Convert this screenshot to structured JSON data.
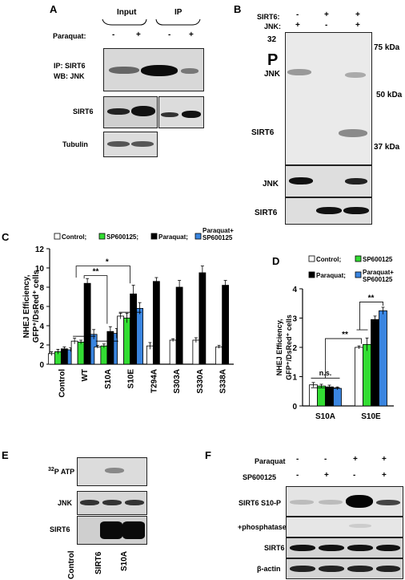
{
  "panels": {
    "A": {
      "letter": "A",
      "group_input": "Input",
      "group_ip": "IP",
      "treatment_label": "Paraquat:",
      "lane_signs": [
        "-",
        "+",
        "-",
        "+"
      ],
      "rows": [
        "IP: SIRT6\nWB: JNK",
        "SIRT6",
        "Tubulin"
      ]
    },
    "B": {
      "letter": "B",
      "sirt6_label": "SIRT6:",
      "jnk_label": "JNK:",
      "sirt6_signs": [
        "-",
        "+",
        "+"
      ],
      "jnk_signs": [
        "+",
        "-",
        "+"
      ],
      "p32_num": "32",
      "p32_letter": "P",
      "blot_labels": [
        "JNK",
        "SIRT6"
      ],
      "mw_markers": [
        "75 kDa",
        "50 kDa",
        "37 kDa"
      ],
      "lower_rows": [
        "JNK",
        "SIRT6"
      ]
    },
    "E": {
      "letter": "E",
      "rows": [
        "ATP",
        "JNK",
        "SIRT6"
      ],
      "atp_sup": "32",
      "atp_p": "P",
      "lanes": [
        "Control",
        "SIRT6",
        "S10A"
      ]
    },
    "F": {
      "letter": "F",
      "paraquat_label": "Paraquat",
      "sp_label": "SP600125",
      "paraquat_signs": [
        "-",
        "-",
        "+",
        "+"
      ],
      "sp_signs": [
        "-",
        "+",
        "-",
        "+"
      ],
      "rows": [
        "SIRT6 S10-P",
        "+phosphatase",
        "SIRT6",
        "β-actin"
      ]
    }
  },
  "chart_data": [
    {
      "panel": "C",
      "type": "bar",
      "ylabel_line1": "NHEJ Efficiency,",
      "ylabel_line2": "GFP⁺/DsRed⁺ cells",
      "ylim": [
        0,
        12
      ],
      "yticks": [
        "0",
        "2",
        "4",
        "6",
        "8",
        "10",
        "12"
      ],
      "categories": [
        "Control",
        "WT",
        "S10A",
        "S10E",
        "T294A",
        "S303A",
        "S330A",
        "S338A"
      ],
      "legend_items": [
        "Control;",
        "SP600125;",
        "Paraquat;",
        "Paraquat+\nSP600125"
      ],
      "series": [
        {
          "name": "Control",
          "color": "#ffffff",
          "values": [
            1.1,
            2.4,
            1.8,
            5.0,
            1.9,
            2.5,
            2.5,
            1.8
          ],
          "errors": [
            0.2,
            0.3,
            0.15,
            0.3,
            0.35,
            0.15,
            0.25,
            0.15
          ]
        },
        {
          "name": "SP600125",
          "color": "#33dd33",
          "values": [
            1.3,
            2.3,
            1.9,
            4.8,
            null,
            null,
            null,
            null
          ],
          "errors": [
            0.25,
            0.2,
            0.2,
            0.5,
            null,
            null,
            null,
            null
          ]
        },
        {
          "name": "Paraquat",
          "color": "#000000",
          "values": [
            1.6,
            8.4,
            3.4,
            7.3,
            8.6,
            8.0,
            9.5,
            8.2
          ],
          "errors": [
            0.2,
            0.5,
            0.5,
            0.9,
            0.4,
            0.7,
            0.7,
            0.5
          ]
        },
        {
          "name": "Paraquat+SP600125",
          "color": "#3a85e0",
          "values": [
            1.5,
            3.1,
            3.2,
            5.8,
            null,
            null,
            null,
            null
          ],
          "errors": [
            0.2,
            0.5,
            0.5,
            0.6,
            null,
            null,
            null,
            null
          ]
        }
      ],
      "significance": [
        "**",
        "*"
      ]
    },
    {
      "panel": "D",
      "type": "bar",
      "ylabel_line1": "NHEJ Efficiency,",
      "ylabel_line2": "GFP⁺/DsRed⁺ cells",
      "ylim": [
        0,
        4
      ],
      "yticks": [
        "0",
        "1",
        "2",
        "3",
        "4"
      ],
      "categories": [
        "S10A",
        "S10E"
      ],
      "legend_items": [
        "Control;",
        "SP600125",
        "Paraquat;",
        "Paraquat+\nSP600125"
      ],
      "series": [
        {
          "name": "Control",
          "color": "#ffffff",
          "values": [
            0.72,
            2.0
          ],
          "errors": [
            0.08,
            0.05
          ]
        },
        {
          "name": "SP600125",
          "color": "#33dd33",
          "values": [
            0.68,
            2.1
          ],
          "errors": [
            0.06,
            0.22
          ]
        },
        {
          "name": "Paraquat",
          "color": "#000000",
          "values": [
            0.65,
            2.95
          ],
          "errors": [
            0.06,
            0.12
          ]
        },
        {
          "name": "Paraquat+SP600125",
          "color": "#3a85e0",
          "values": [
            0.6,
            3.25
          ],
          "errors": [
            0.05,
            0.12
          ]
        }
      ],
      "significance": [
        "n.s.",
        "**",
        "**"
      ]
    }
  ]
}
